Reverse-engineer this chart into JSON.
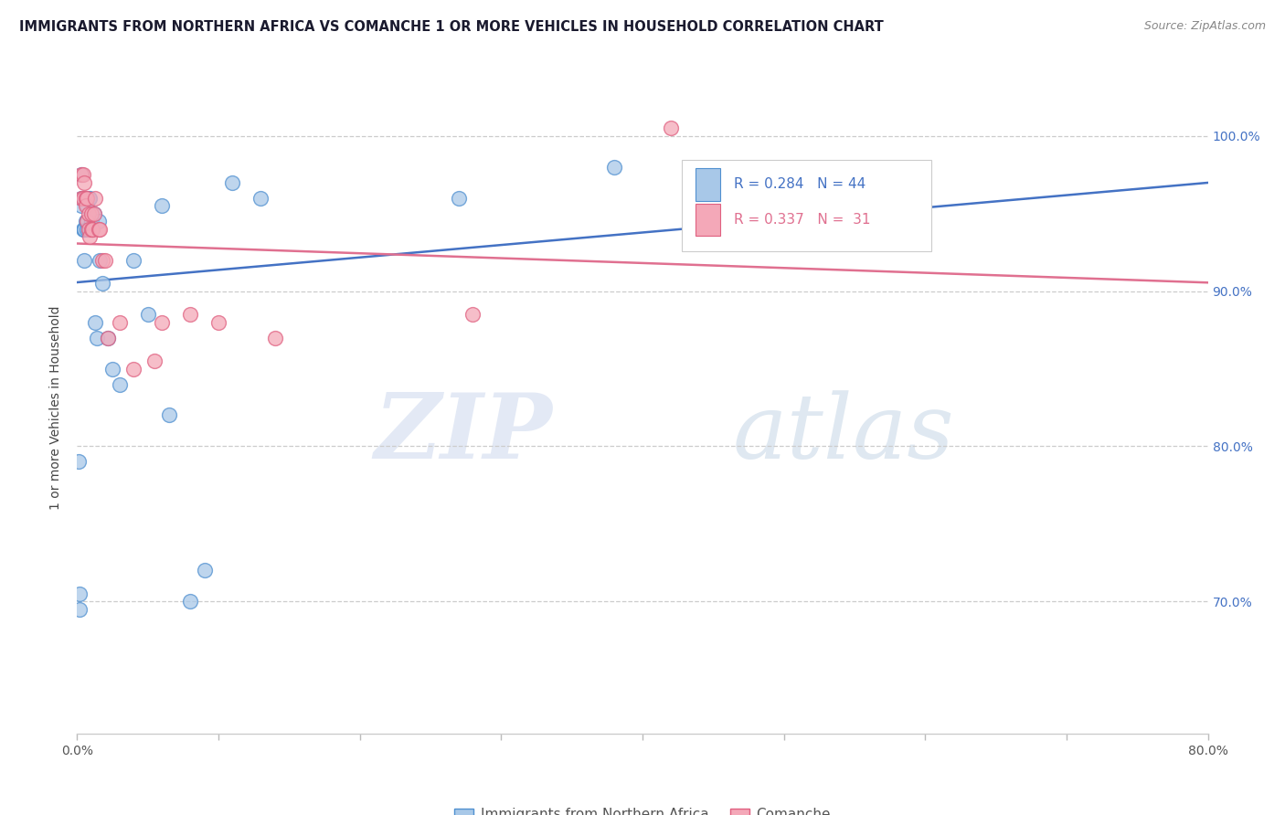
{
  "title": "IMMIGRANTS FROM NORTHERN AFRICA VS COMANCHE 1 OR MORE VEHICLES IN HOUSEHOLD CORRELATION CHART",
  "source": "Source: ZipAtlas.com",
  "ylabel": "1 or more Vehicles in Household",
  "legend_labels": [
    "Immigrants from Northern Africa",
    "Comanche"
  ],
  "blue_R": 0.284,
  "blue_N": 44,
  "pink_R": 0.337,
  "pink_N": 31,
  "xlim": [
    0.0,
    0.8
  ],
  "ylim": [
    0.615,
    1.035
  ],
  "ytick_values": [
    1.0,
    0.9,
    0.8,
    0.7
  ],
  "ytick_labels": [
    "100.0%",
    "90.0%",
    "80.0%",
    "70.0%"
  ],
  "blue_color": "#A8C8E8",
  "pink_color": "#F4A8B8",
  "blue_edge_color": "#5090D0",
  "pink_edge_color": "#E06080",
  "blue_line_color": "#4472C4",
  "pink_line_color": "#E07090",
  "blue_x": [
    0.001,
    0.002,
    0.002,
    0.003,
    0.003,
    0.003,
    0.004,
    0.004,
    0.004,
    0.005,
    0.005,
    0.005,
    0.006,
    0.006,
    0.006,
    0.007,
    0.007,
    0.007,
    0.008,
    0.008,
    0.009,
    0.009,
    0.01,
    0.01,
    0.011,
    0.012,
    0.013,
    0.014,
    0.015,
    0.016,
    0.018,
    0.022,
    0.025,
    0.03,
    0.04,
    0.05,
    0.06,
    0.065,
    0.08,
    0.09,
    0.11,
    0.13,
    0.27,
    0.38
  ],
  "blue_y": [
    0.79,
    0.695,
    0.705,
    0.96,
    0.955,
    0.975,
    0.94,
    0.96,
    0.96,
    0.94,
    0.94,
    0.92,
    0.96,
    0.96,
    0.945,
    0.955,
    0.945,
    0.94,
    0.96,
    0.94,
    0.96,
    0.94,
    0.945,
    0.945,
    0.94,
    0.95,
    0.88,
    0.87,
    0.945,
    0.92,
    0.905,
    0.87,
    0.85,
    0.84,
    0.92,
    0.885,
    0.955,
    0.82,
    0.7,
    0.72,
    0.97,
    0.96,
    0.96,
    0.98
  ],
  "pink_x": [
    0.003,
    0.003,
    0.004,
    0.004,
    0.005,
    0.006,
    0.006,
    0.007,
    0.007,
    0.008,
    0.008,
    0.009,
    0.01,
    0.01,
    0.011,
    0.012,
    0.013,
    0.015,
    0.016,
    0.018,
    0.02,
    0.022,
    0.03,
    0.04,
    0.055,
    0.06,
    0.08,
    0.1,
    0.14,
    0.28,
    0.42
  ],
  "pink_y": [
    0.975,
    0.96,
    0.975,
    0.96,
    0.97,
    0.96,
    0.955,
    0.96,
    0.945,
    0.95,
    0.94,
    0.935,
    0.95,
    0.94,
    0.94,
    0.95,
    0.96,
    0.94,
    0.94,
    0.92,
    0.92,
    0.87,
    0.88,
    0.85,
    0.855,
    0.88,
    0.885,
    0.88,
    0.87,
    0.885,
    1.005
  ],
  "watermark_zip": "ZIP",
  "watermark_atlas": "atlas",
  "bg_color": "#ffffff"
}
